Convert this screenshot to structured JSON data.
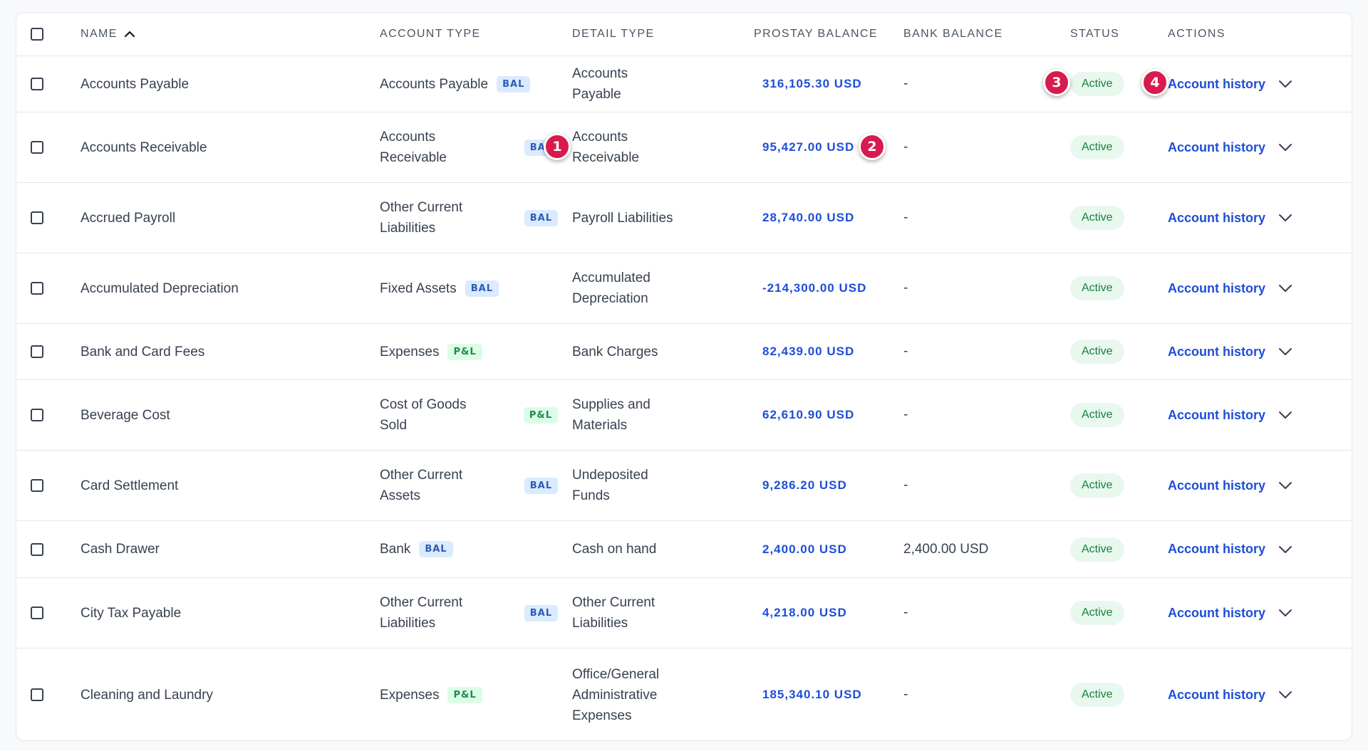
{
  "headers": {
    "name": "NAME",
    "account_type": "ACCOUNT TYPE",
    "detail_type": "DETAIL TYPE",
    "prostay_balance": "PROSTAY BALANCE",
    "bank_balance": "BANK BALANCE",
    "status": "STATUS",
    "actions": "ACTIONS"
  },
  "sort": {
    "column": "name",
    "direction": "ascending",
    "icon": "chevron-up-icon"
  },
  "action_label": "Account history",
  "expand_icon": "chevron-down-icon",
  "colors": {
    "link": "#1d4ed8",
    "bal_badge_bg": "#dbeafe",
    "pl_badge_bg": "#dcfce7",
    "status_bg": "#e9f8ee",
    "status_text": "#16803c",
    "marker": "#d81b4e"
  },
  "rows": [
    {
      "name": "Accounts Payable",
      "account_type": "Accounts Payable",
      "badge": "BAL",
      "detail_type": "Accounts Payable",
      "prostay_balance": "316,105.30 USD",
      "bank_balance": "-",
      "status": "Active"
    },
    {
      "name": "Accounts Receivable",
      "account_type": "Accounts Receivable",
      "badge": "BAL",
      "detail_type": "Accounts Receivable",
      "prostay_balance": "95,427.00 USD",
      "bank_balance": "-",
      "status": "Active"
    },
    {
      "name": "Accrued Payroll",
      "account_type": "Other Current Liabilities",
      "badge": "BAL",
      "detail_type": "Payroll Liabilities",
      "prostay_balance": "28,740.00 USD",
      "bank_balance": "-",
      "status": "Active"
    },
    {
      "name": "Accumulated Depreciation",
      "account_type": "Fixed Assets",
      "badge": "BAL",
      "detail_type": "Accumulated Depreciation",
      "prostay_balance": "-214,300.00 USD",
      "bank_balance": "-",
      "status": "Active"
    },
    {
      "name": "Bank and Card Fees",
      "account_type": "Expenses",
      "badge": "P&L",
      "detail_type": "Bank Charges",
      "prostay_balance": "82,439.00 USD",
      "bank_balance": "-",
      "status": "Active"
    },
    {
      "name": "Beverage Cost",
      "account_type": "Cost of Goods Sold",
      "badge": "P&L",
      "detail_type": "Supplies and Materials",
      "prostay_balance": "62,610.90 USD",
      "bank_balance": "-",
      "status": "Active"
    },
    {
      "name": "Card Settlement",
      "account_type": "Other Current Assets",
      "badge": "BAL",
      "detail_type": "Undeposited Funds",
      "prostay_balance": "9,286.20 USD",
      "bank_balance": "-",
      "status": "Active"
    },
    {
      "name": "Cash Drawer",
      "account_type": "Bank",
      "badge": "BAL",
      "detail_type": "Cash on hand",
      "prostay_balance": "2,400.00 USD",
      "bank_balance": "2,400.00 USD",
      "status": "Active"
    },
    {
      "name": "City Tax Payable",
      "account_type": "Other Current Liabilities",
      "badge": "BAL",
      "detail_type": "Other Current Liabilities",
      "prostay_balance": "4,218.00 USD",
      "bank_balance": "-",
      "status": "Active"
    },
    {
      "name": "Cleaning and Laundry",
      "account_type": "Expenses",
      "badge": "P&L",
      "detail_type": "Office/General Administrative Expenses",
      "prostay_balance": "185,340.10 USD",
      "bank_balance": "-",
      "status": "Active"
    }
  ],
  "markers": [
    "1",
    "2",
    "3",
    "4"
  ]
}
